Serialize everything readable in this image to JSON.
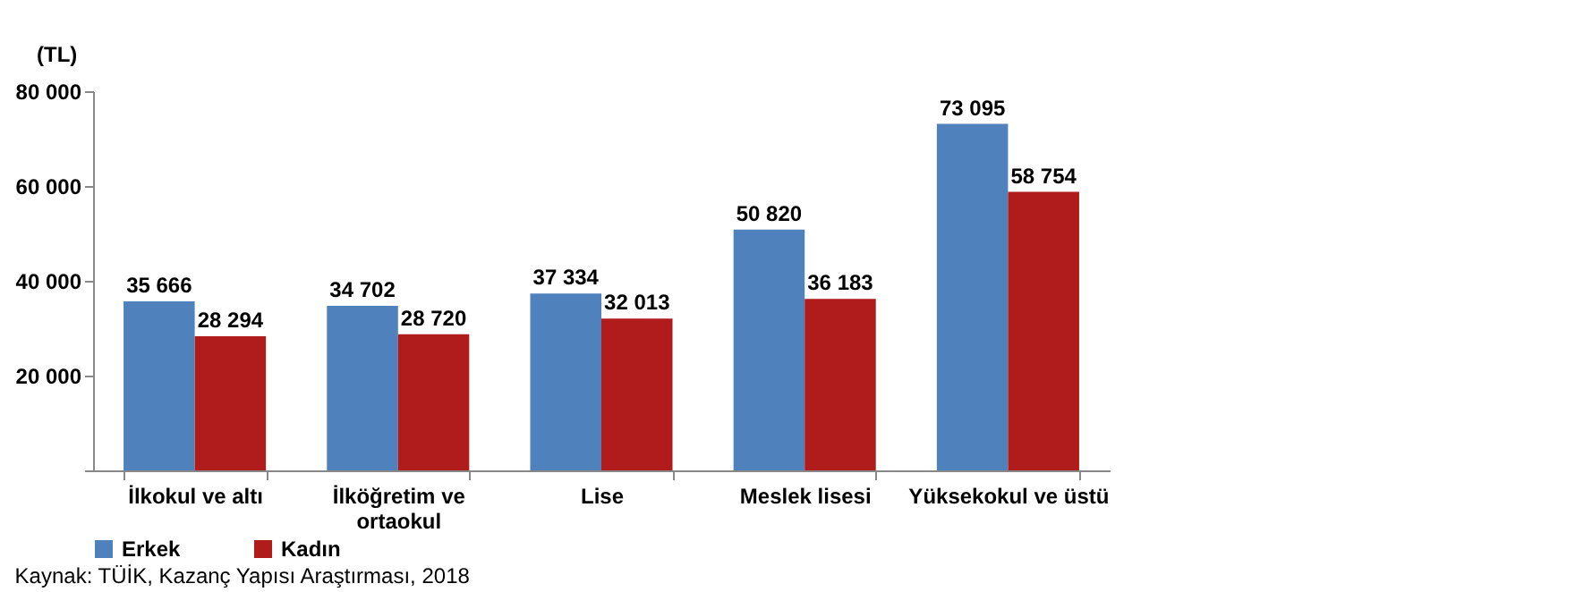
{
  "chart_data": {
    "type": "bar",
    "ylabel": "(TL)",
    "categories": [
      "İlkokul ve altı",
      "İlköğretim ve ortaokul",
      "Lise",
      "Meslek lisesi",
      "Yüksekokul ve üstü"
    ],
    "series": [
      {
        "name": "Erkek",
        "color": "#4f81bd",
        "values": [
          35666,
          34702,
          37334,
          50820,
          73095
        ],
        "value_labels": [
          "35 666",
          "34 702",
          "37 334",
          "50 820",
          "73 095"
        ]
      },
      {
        "name": "Kadın",
        "color": "#b01c1c",
        "values": [
          28294,
          28720,
          32013,
          36183,
          58754
        ],
        "value_labels": [
          "28 294",
          "28 720",
          "32 013",
          "36 183",
          "58 754"
        ]
      }
    ],
    "ylim": [
      0,
      80000
    ],
    "yticks": [
      {
        "value": 0,
        "label": null
      },
      {
        "value": 20000,
        "label": "20 000"
      },
      {
        "value": 40000,
        "label": "40 000"
      },
      {
        "value": 60000,
        "label": "60 000"
      },
      {
        "value": 80000,
        "label": "80 000"
      }
    ],
    "grid": false,
    "legend": "bottom",
    "annotations": [
      "Kaynak: TÜİK, Kazanç Yapısı Araştırması, 2018"
    ]
  }
}
